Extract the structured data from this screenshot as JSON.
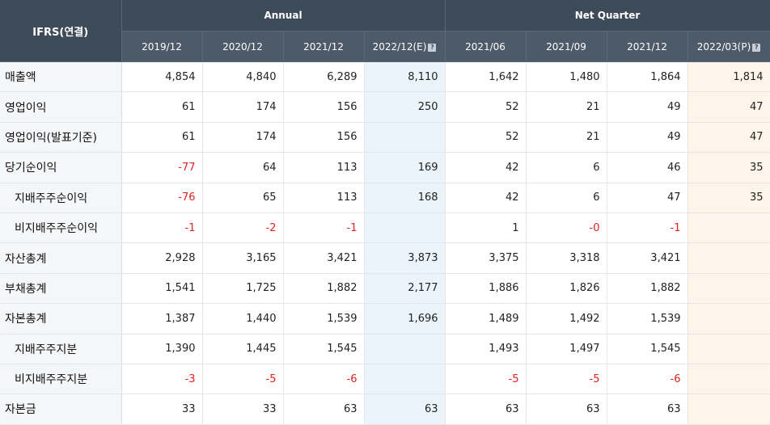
{
  "header": {
    "row_label": "IFRS(연결)",
    "groups": [
      "Annual",
      "Net Quarter"
    ],
    "periods": [
      "2019/12",
      "2020/12",
      "2021/12",
      "2022/12(E)",
      "2021/06",
      "2021/09",
      "2021/12",
      "2022/03(P)"
    ],
    "info_marker": "?"
  },
  "rows": [
    {
      "label": "매출액",
      "sub": false,
      "values": [
        "4,854",
        "4,840",
        "6,289",
        "8,110",
        "1,642",
        "1,480",
        "1,864",
        "1,814"
      ]
    },
    {
      "label": "영업이익",
      "sub": false,
      "values": [
        "61",
        "174",
        "156",
        "250",
        "52",
        "21",
        "49",
        "47"
      ]
    },
    {
      "label": "영업이익(발표기준)",
      "sub": false,
      "values": [
        "61",
        "174",
        "156",
        "",
        "52",
        "21",
        "49",
        "47"
      ]
    },
    {
      "label": "당기순이익",
      "sub": false,
      "values": [
        "-77",
        "64",
        "113",
        "169",
        "42",
        "6",
        "46",
        "35"
      ]
    },
    {
      "label": "지배주주순이익",
      "sub": true,
      "values": [
        "-76",
        "65",
        "113",
        "168",
        "42",
        "6",
        "47",
        "35"
      ]
    },
    {
      "label": "비지배주주순이익",
      "sub": true,
      "values": [
        "-1",
        "-2",
        "-1",
        "",
        "1",
        "-0",
        "-1",
        ""
      ]
    },
    {
      "label": "자산총계",
      "sub": false,
      "values": [
        "2,928",
        "3,165",
        "3,421",
        "3,873",
        "3,375",
        "3,318",
        "3,421",
        ""
      ]
    },
    {
      "label": "부채총계",
      "sub": false,
      "values": [
        "1,541",
        "1,725",
        "1,882",
        "2,177",
        "1,886",
        "1,826",
        "1,882",
        ""
      ]
    },
    {
      "label": "자본총계",
      "sub": false,
      "values": [
        "1,387",
        "1,440",
        "1,539",
        "1,696",
        "1,489",
        "1,492",
        "1,539",
        ""
      ]
    },
    {
      "label": "지배주주지분",
      "sub": true,
      "values": [
        "1,390",
        "1,445",
        "1,545",
        "",
        "1,493",
        "1,497",
        "1,545",
        ""
      ]
    },
    {
      "label": "비지배주주지분",
      "sub": true,
      "values": [
        "-3",
        "-5",
        "-6",
        "",
        "-5",
        "-5",
        "-6",
        ""
      ]
    },
    {
      "label": "자본금",
      "sub": false,
      "values": [
        "33",
        "33",
        "63",
        "63",
        "63",
        "63",
        "63",
        ""
      ]
    }
  ],
  "colors": {
    "header_bg": "#3d4a58",
    "estimate_bg": "#eaf4fa",
    "provisional_bg": "#fdf5e9",
    "negative": "#e0231c"
  }
}
